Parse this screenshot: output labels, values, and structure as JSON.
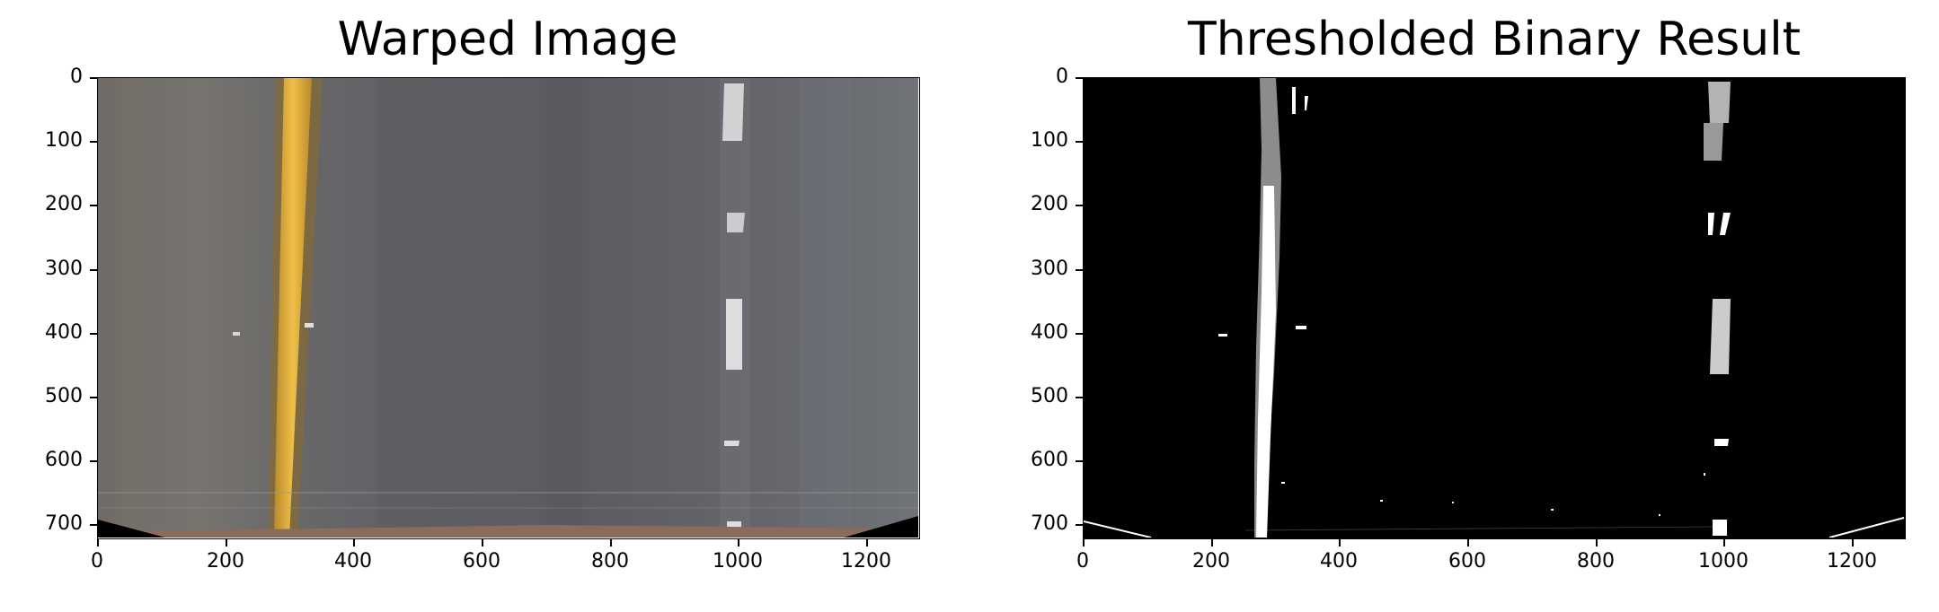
{
  "panels": [
    {
      "title": "Warped Image",
      "kind": "warped-road",
      "xticks": [
        "0",
        "200",
        "400",
        "600",
        "800",
        "1000",
        "1200"
      ],
      "yticks": [
        "0",
        "100",
        "200",
        "300",
        "400",
        "500",
        "600",
        "700"
      ]
    },
    {
      "title": "Thresholded Binary Result",
      "kind": "binary-road",
      "xticks": [
        "0",
        "200",
        "400",
        "600",
        "800",
        "1000",
        "1200"
      ],
      "yticks": [
        "0",
        "100",
        "200",
        "300",
        "400",
        "500",
        "600",
        "700"
      ]
    }
  ],
  "image_extent": {
    "width": 1280,
    "height": 720
  },
  "colors": {
    "road": "#5d5e63",
    "yellow_line": "#e8b83a",
    "white_line": "#f2f2f2",
    "binary_bg": "#000000",
    "binary_fg": "#ffffff",
    "ground": "#8a6b5c"
  }
}
